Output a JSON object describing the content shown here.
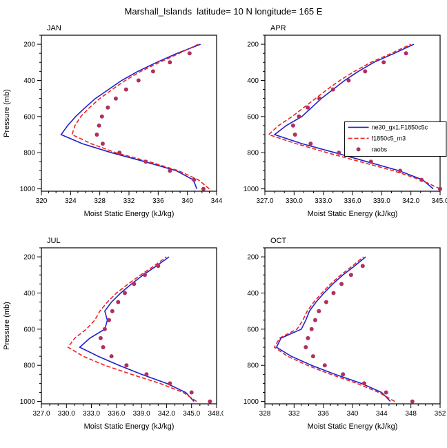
{
  "page": {
    "title": "Marshall_Islands  latitude= 10 N longitude= 165 E"
  },
  "chart_data": [
    {
      "type": "line",
      "title": "JAN",
      "xlabel": "Moist Static Energy (kJ/kg)",
      "ylabel": "Pressure (mb)",
      "xlim": [
        320,
        344
      ],
      "xticks": [
        320,
        324,
        328,
        332,
        336,
        340,
        344
      ],
      "xtick_labels": [
        "320",
        "324",
        "328",
        "332",
        "336",
        "340",
        "344"
      ],
      "x_minor_step": 1,
      "y_axis": {
        "range": [
          150,
          1013
        ],
        "ticks": [
          200,
          400,
          600,
          800,
          1000
        ],
        "minor_step": 50
      },
      "legend": false,
      "series": [
        {
          "name": "ne30_gx1.F1850c5c",
          "color": "#2020cc",
          "style": "solid",
          "pressure": [
            1000,
            950,
            900,
            850,
            800,
            750,
            700,
            650,
            600,
            550,
            500,
            450,
            400,
            350,
            300,
            250,
            200
          ],
          "values": [
            341.3,
            340.8,
            338.5,
            334.2,
            329.6,
            325.6,
            322.7,
            323.6,
            324.7,
            326.0,
            327.4,
            329.2,
            331.0,
            333.2,
            335.8,
            338.6,
            341.8
          ]
        },
        {
          "name": "f1850c5_m3",
          "color": "#ee2222",
          "style": "dashed",
          "pressure": [
            1000,
            950,
            900,
            850,
            800,
            750,
            700,
            650,
            600,
            550,
            500,
            450,
            400,
            350,
            300,
            250,
            200
          ],
          "values": [
            343.0,
            341.5,
            338.8,
            334.8,
            330.2,
            326.8,
            324.2,
            324.6,
            325.4,
            326.6,
            328.0,
            329.7,
            331.5,
            333.6,
            336.2,
            338.9,
            341.5
          ]
        },
        {
          "name": "raobs",
          "color": "#b03060",
          "style": "dots",
          "pressure": [
            1000,
            950,
            900,
            850,
            800,
            750,
            700,
            650,
            600,
            550,
            500,
            450,
            400,
            350,
            300,
            250
          ],
          "values": [
            342.2,
            340.9,
            337.6,
            334.3,
            330.7,
            328.4,
            327.6,
            327.9,
            328.3,
            329.1,
            330.2,
            331.6,
            333.3,
            335.3,
            337.6,
            340.3
          ]
        }
      ]
    },
    {
      "type": "line",
      "title": "APR",
      "xlabel": "Moist Static Energy (kJ/kg)",
      "ylabel": "",
      "xlim": [
        327,
        345
      ],
      "xticks": [
        327,
        330,
        333,
        336,
        339,
        342,
        345
      ],
      "xtick_labels": [
        "327.0",
        "330.0",
        "333.0",
        "336.0",
        "339.0",
        "342.0",
        "345.0"
      ],
      "x_minor_step": 1,
      "y_axis": {
        "range": [
          150,
          1013
        ],
        "ticks": [
          200,
          400,
          600,
          800,
          1000
        ],
        "minor_step": 50
      },
      "legend": true,
      "series": [
        {
          "name": "ne30_gx1.F1850c5c",
          "color": "#2020cc",
          "style": "solid",
          "pressure": [
            1000,
            950,
            900,
            850,
            800,
            750,
            700,
            650,
            600,
            550,
            500,
            450,
            400,
            350,
            300,
            250,
            200
          ],
          "values": [
            344.3,
            343.2,
            340.8,
            337.5,
            334.2,
            330.8,
            328.0,
            329.2,
            330.8,
            331.8,
            332.8,
            334.0,
            335.2,
            336.6,
            338.2,
            340.3,
            342.3
          ]
        },
        {
          "name": "f1850c5_m3",
          "color": "#ee2222",
          "style": "dashed",
          "pressure": [
            1000,
            950,
            900,
            850,
            800,
            750,
            700,
            650,
            600,
            550,
            500,
            450,
            400,
            350,
            300,
            250,
            200
          ],
          "values": [
            345.0,
            343.0,
            340.2,
            336.8,
            333.4,
            330.2,
            327.4,
            328.4,
            329.8,
            331.0,
            332.2,
            333.4,
            334.7,
            336.2,
            337.9,
            340.0,
            342.0
          ]
        },
        {
          "name": "raobs",
          "color": "#b03060",
          "style": "dots",
          "pressure": [
            1000,
            950,
            900,
            850,
            800,
            750,
            700,
            650,
            600,
            550,
            500,
            450,
            400,
            350,
            300,
            250
          ],
          "values": [
            345.0,
            343.1,
            340.9,
            337.9,
            334.6,
            331.7,
            330.1,
            329.9,
            330.5,
            331.4,
            332.6,
            334.0,
            335.6,
            337.3,
            339.2,
            341.5
          ]
        }
      ]
    },
    {
      "type": "line",
      "title": "JUL",
      "xlabel": "Moist Static Energy (kJ/kg)",
      "ylabel": "Pressure (mb)",
      "xlim": [
        327,
        348
      ],
      "xticks": [
        327,
        330,
        333,
        336,
        339,
        342,
        345,
        348
      ],
      "xtick_labels": [
        "327.0",
        "330.0",
        "333.0",
        "336.0",
        "339.0",
        "342.0",
        "345.0",
        "348.0"
      ],
      "x_minor_step": 1,
      "y_axis": {
        "range": [
          150,
          1013
        ],
        "ticks": [
          200,
          400,
          600,
          800,
          1000
        ],
        "minor_step": 50
      },
      "legend": false,
      "series": [
        {
          "name": "ne30_gx1.F1850c5c",
          "color": "#2020cc",
          "style": "solid",
          "pressure": [
            1000,
            950,
            900,
            850,
            800,
            750,
            700,
            650,
            600,
            550,
            500,
            450,
            400,
            350,
            300,
            250,
            200
          ],
          "values": [
            345.3,
            344.3,
            342.0,
            339.0,
            336.3,
            333.8,
            331.6,
            332.8,
            334.6,
            334.9,
            334.6,
            335.4,
            336.5,
            337.8,
            339.2,
            340.8,
            342.3
          ]
        },
        {
          "name": "f1850c5_m3",
          "color": "#ee2222",
          "style": "dashed",
          "pressure": [
            1000,
            950,
            900,
            850,
            800,
            750,
            700,
            650,
            600,
            550,
            500,
            450,
            400,
            350,
            300,
            250,
            200
          ],
          "values": [
            345.6,
            344.0,
            341.2,
            337.8,
            334.6,
            332.0,
            330.2,
            331.0,
            332.4,
            333.4,
            334.0,
            334.9,
            336.0,
            337.4,
            338.9,
            340.5,
            342.0
          ]
        },
        {
          "name": "raobs",
          "color": "#b03060",
          "style": "dots",
          "pressure": [
            1000,
            950,
            900,
            850,
            800,
            750,
            700,
            650,
            600,
            550,
            500,
            450,
            400,
            350,
            300,
            250
          ],
          "values": [
            347.2,
            345.0,
            342.4,
            339.6,
            337.2,
            335.4,
            334.4,
            334.1,
            334.6,
            335.1,
            335.5,
            336.2,
            337.0,
            338.1,
            339.4,
            341.0
          ]
        }
      ]
    },
    {
      "type": "line",
      "title": "OCT",
      "xlabel": "Moist Static Energy (kJ/kg)",
      "ylabel": "",
      "xlim": [
        328,
        352
      ],
      "xticks": [
        328,
        332,
        336,
        340,
        344,
        348,
        352
      ],
      "xtick_labels": [
        "328",
        "332",
        "336",
        "340",
        "344",
        "348",
        "352"
      ],
      "x_minor_step": 1,
      "y_axis": {
        "range": [
          150,
          1013
        ],
        "ticks": [
          200,
          400,
          600,
          800,
          1000
        ],
        "minor_step": 50
      },
      "legend": false,
      "series": [
        {
          "name": "ne30_gx1.F1850c5c",
          "color": "#2020cc",
          "style": "solid",
          "pressure": [
            1000,
            950,
            900,
            850,
            800,
            750,
            700,
            650,
            600,
            550,
            500,
            450,
            400,
            350,
            300,
            250,
            200
          ],
          "values": [
            345.2,
            344.0,
            341.2,
            337.6,
            334.4,
            331.6,
            329.6,
            330.2,
            333.0,
            333.6,
            334.1,
            335.0,
            336.1,
            337.3,
            338.7,
            340.3,
            341.8
          ]
        },
        {
          "name": "f1850c5_m3",
          "color": "#ee2222",
          "style": "dashed",
          "pressure": [
            1000,
            950,
            900,
            850,
            800,
            750,
            700,
            650,
            600,
            550,
            500,
            450,
            400,
            350,
            300,
            250,
            200
          ],
          "values": [
            345.8,
            343.6,
            340.6,
            337.0,
            333.8,
            331.1,
            329.3,
            330.0,
            332.4,
            333.2,
            333.8,
            334.7,
            335.8,
            337.0,
            338.4,
            340.0,
            341.5
          ]
        },
        {
          "name": "raobs",
          "color": "#b03060",
          "style": "dots",
          "pressure": [
            1000,
            950,
            900,
            850,
            800,
            750,
            700,
            650,
            600,
            550,
            500,
            450,
            400,
            350,
            300,
            250
          ],
          "values": [
            348.2,
            344.6,
            341.6,
            338.7,
            336.2,
            334.6,
            333.6,
            333.9,
            334.4,
            334.9,
            335.4,
            336.4,
            337.4,
            338.5,
            339.8,
            341.4
          ]
        }
      ]
    }
  ]
}
